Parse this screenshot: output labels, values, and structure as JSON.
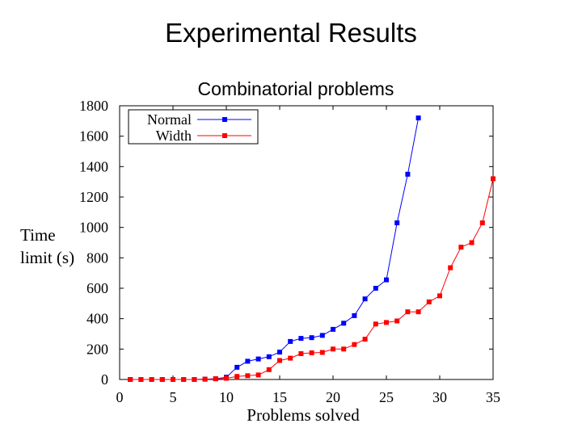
{
  "slide": {
    "title": "Experimental Results"
  },
  "chart_data": {
    "type": "line",
    "title": "Combinatorial problems",
    "xlabel": "Problems solved",
    "ylabel_lines": [
      "Time",
      "limit (s)"
    ],
    "xlim": [
      0,
      35
    ],
    "ylim": [
      0,
      1800
    ],
    "xticks": [
      0,
      5,
      10,
      15,
      20,
      25,
      30,
      35
    ],
    "yticks": [
      0,
      200,
      400,
      600,
      800,
      1000,
      1200,
      1400,
      1600,
      1800
    ],
    "legend_position": "top-left",
    "series": [
      {
        "name": "Normal",
        "color": "#0000ff",
        "x": [
          1,
          2,
          3,
          4,
          5,
          6,
          7,
          8,
          9,
          10,
          11,
          12,
          13,
          14,
          15,
          16,
          17,
          18,
          19,
          20,
          21,
          22,
          23,
          24,
          25,
          26,
          27,
          28
        ],
        "y": [
          0,
          0,
          0,
          0,
          0,
          0,
          0,
          2,
          5,
          15,
          80,
          120,
          135,
          150,
          180,
          250,
          270,
          275,
          290,
          330,
          370,
          420,
          530,
          600,
          655,
          1030,
          1350,
          1720
        ]
      },
      {
        "name": "Width",
        "color": "#ff0000",
        "x": [
          1,
          2,
          3,
          4,
          5,
          6,
          7,
          8,
          9,
          10,
          11,
          12,
          13,
          14,
          15,
          16,
          17,
          18,
          19,
          20,
          21,
          22,
          23,
          24,
          25,
          26,
          27,
          28,
          29,
          30,
          31,
          32,
          33,
          34,
          35
        ],
        "y": [
          0,
          0,
          0,
          0,
          0,
          0,
          0,
          2,
          5,
          8,
          20,
          25,
          30,
          65,
          125,
          140,
          170,
          175,
          178,
          200,
          200,
          230,
          265,
          365,
          375,
          385,
          445,
          445,
          510,
          550,
          735,
          870,
          900,
          1030,
          1320
        ]
      }
    ]
  }
}
